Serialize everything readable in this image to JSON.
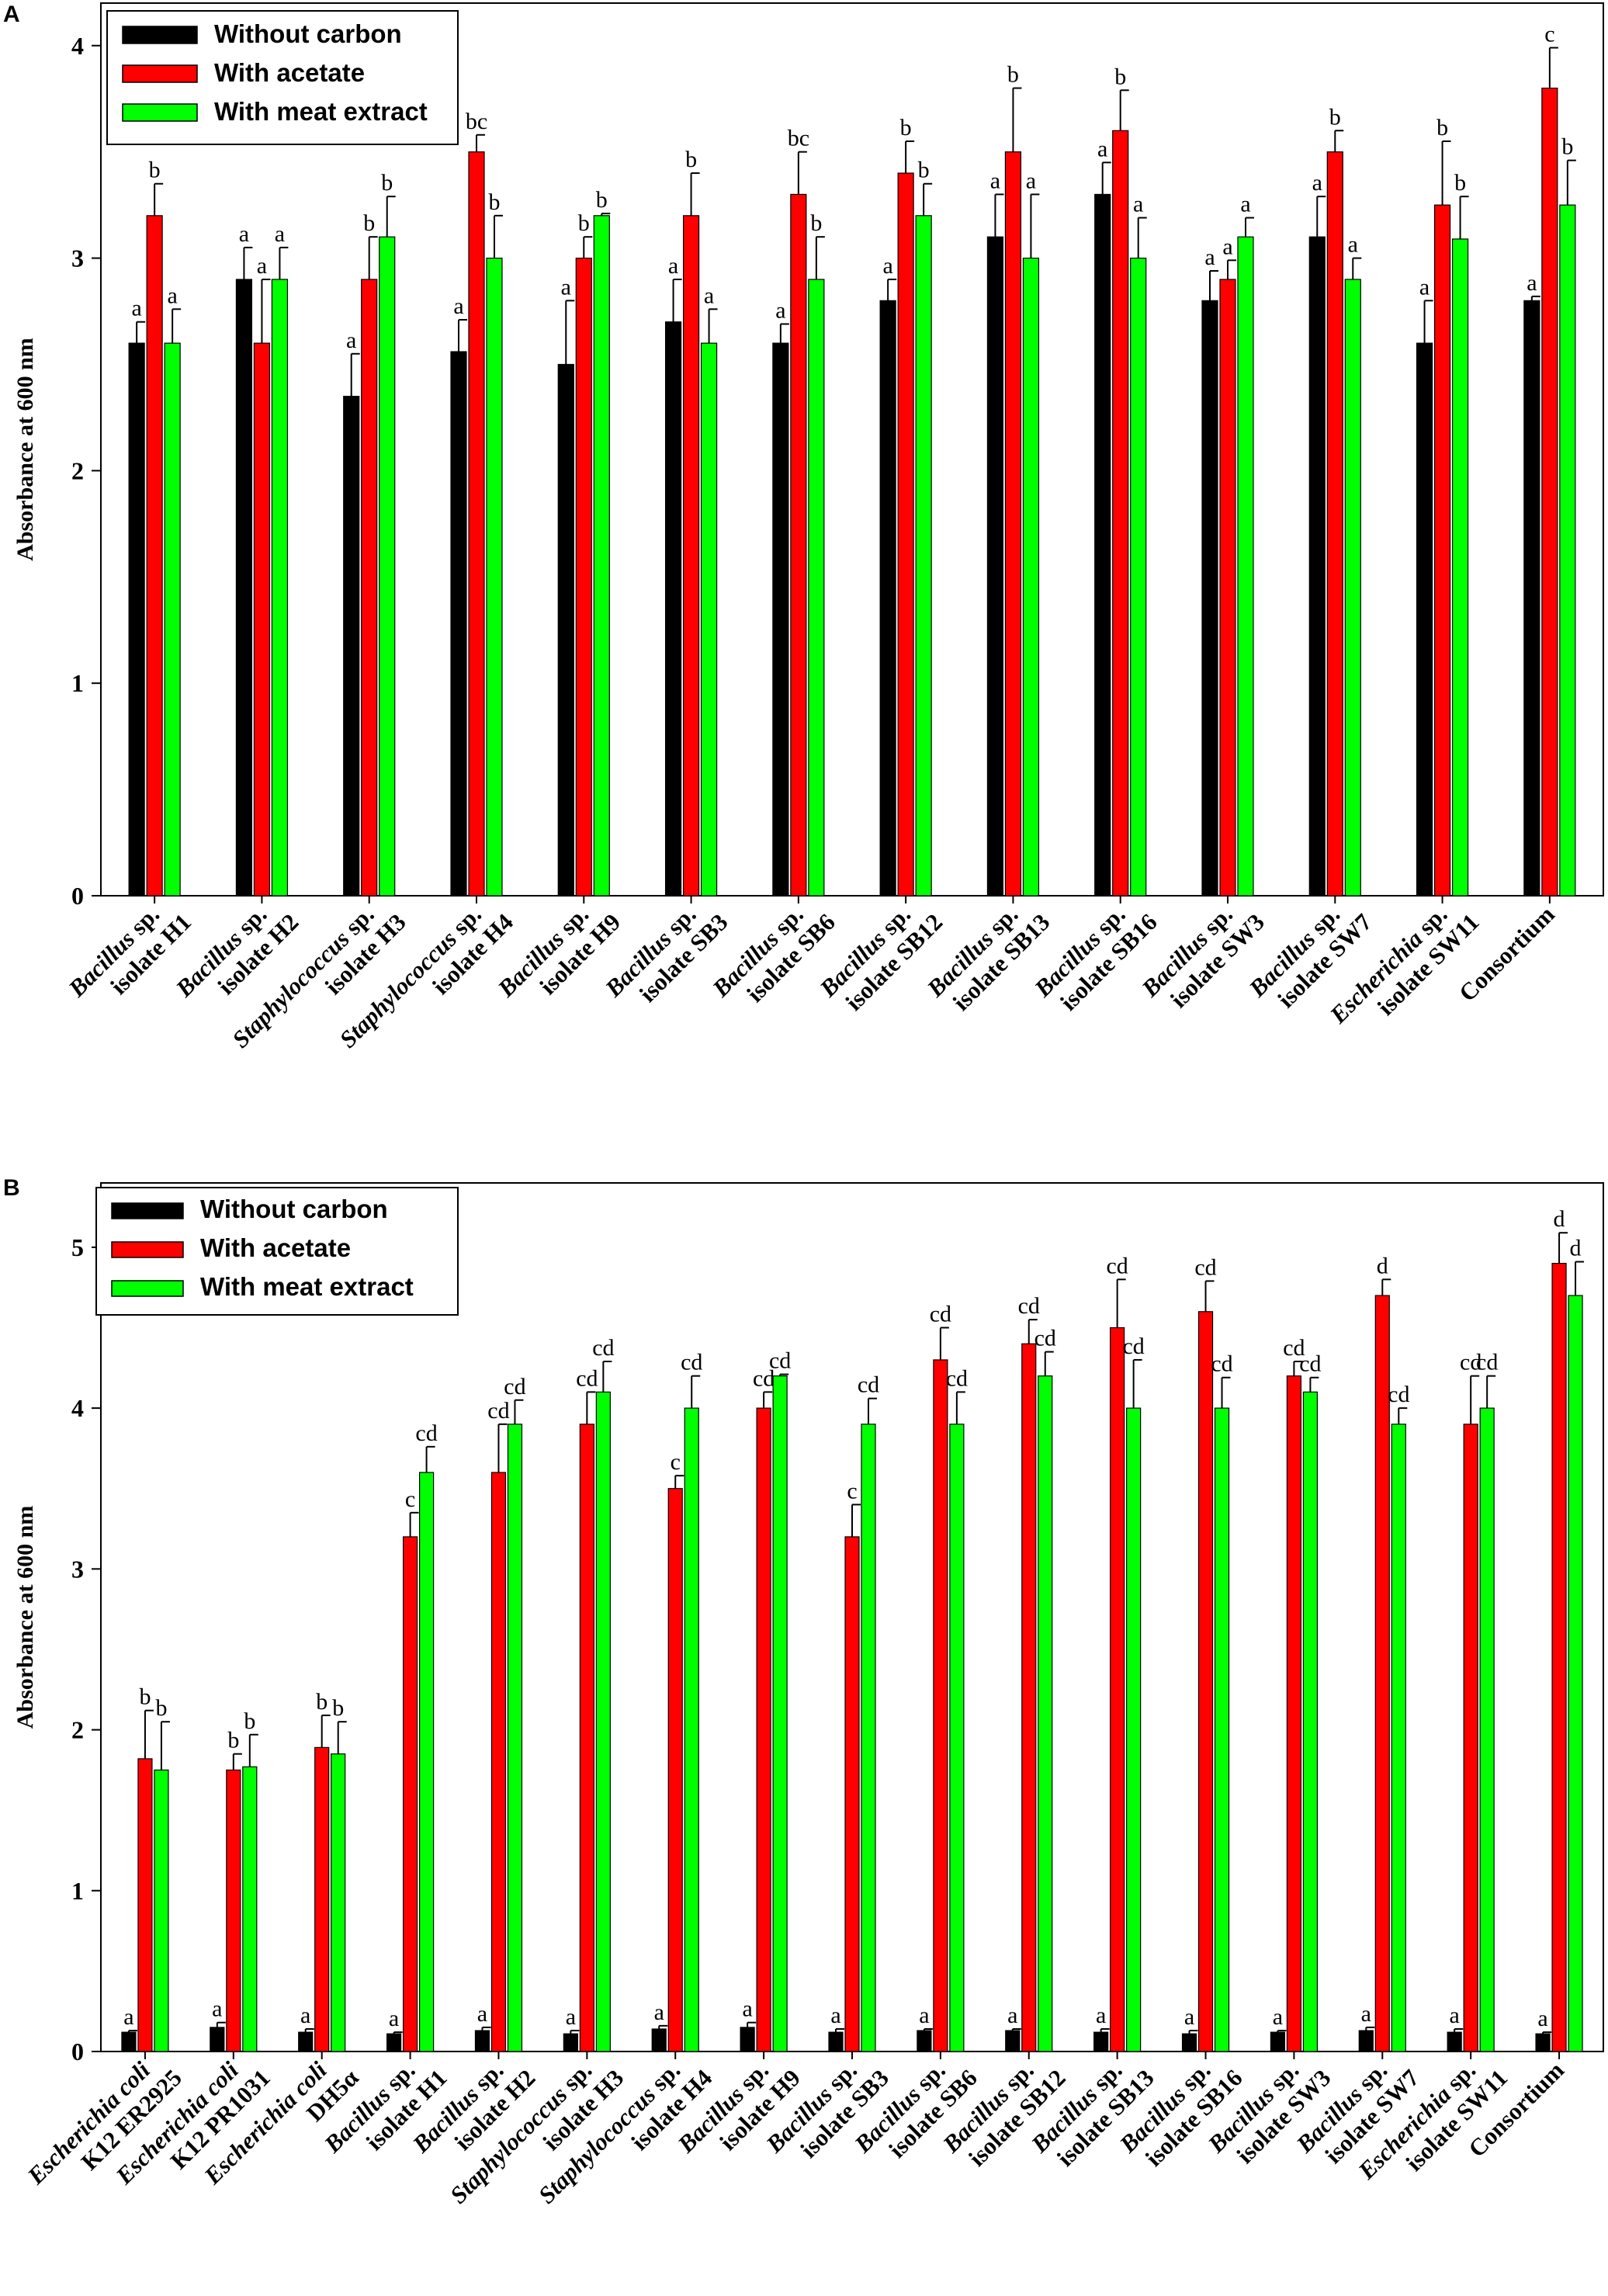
{
  "chart_data": [
    {
      "panel": "A",
      "type": "bar",
      "ylabel": "Absorbance at 600 nm",
      "xlabel": "",
      "ylim": [
        0,
        4.2
      ],
      "yticks": [
        "0",
        "1",
        "2",
        "3",
        "4"
      ],
      "legend": {
        "placement": "top-left",
        "entries": [
          "Without carbon",
          "With acetate",
          "With meat extract"
        ]
      },
      "categories": [
        {
          "genus": "Bacillus",
          "suffix": " sp.",
          "line2": "isolate H1"
        },
        {
          "genus": "Bacillus",
          "suffix": " sp.",
          "line2": "isolate H2"
        },
        {
          "genus": "Staphylococcus",
          "suffix": " sp.",
          "line2": "isolate H3"
        },
        {
          "genus": "Staphylococcus",
          "suffix": " sp.",
          "line2": "isolate H4"
        },
        {
          "genus": "Bacillus",
          "suffix": " sp.",
          "line2": "isolate H9"
        },
        {
          "genus": "Bacillus",
          "suffix": " sp.",
          "line2": "isolate SB3"
        },
        {
          "genus": "Bacillus",
          "suffix": " sp.",
          "line2": "isolate SB6"
        },
        {
          "genus": "Bacillus",
          "suffix": " sp.",
          "line2": "isolate SB12"
        },
        {
          "genus": "Bacillus",
          "suffix": " sp.",
          "line2": "isolate SB13"
        },
        {
          "genus": "Bacillus",
          "suffix": " sp.",
          "line2": "isolate SB16"
        },
        {
          "genus": "Bacillus",
          "suffix": " sp.",
          "line2": "isolate SW3"
        },
        {
          "genus": "Bacillus",
          "suffix": " sp.",
          "line2": "isolate SW7"
        },
        {
          "genus": "Escherichia",
          "suffix": " sp.",
          "line2": "isolate SW11"
        },
        {
          "genus": "",
          "suffix": "Consortium",
          "line2": ""
        }
      ],
      "series": [
        {
          "name": "Without carbon",
          "color": "#000000",
          "values": [
            2.6,
            2.9,
            2.35,
            2.56,
            2.5,
            2.7,
            2.6,
            2.8,
            3.1,
            3.3,
            2.8,
            3.1,
            2.6,
            2.8
          ],
          "errors": [
            0.1,
            0.15,
            0.2,
            0.15,
            0.3,
            0.2,
            0.09,
            0.1,
            0.2,
            0.15,
            0.14,
            0.19,
            0.2,
            0.02
          ],
          "labels": [
            "a",
            "a",
            "a",
            "a",
            "a",
            "a",
            "a",
            "a",
            "a",
            "a",
            "a",
            "a",
            "a",
            "a"
          ]
        },
        {
          "name": "With acetate",
          "color": "#ff0000",
          "values": [
            3.2,
            2.6,
            2.9,
            3.5,
            3.0,
            3.2,
            3.3,
            3.4,
            3.5,
            3.6,
            2.9,
            3.5,
            3.25,
            3.8
          ],
          "errors": [
            0.15,
            0.3,
            0.2,
            0.08,
            0.1,
            0.2,
            0.2,
            0.15,
            0.3,
            0.19,
            0.09,
            0.1,
            0.3,
            0.19
          ],
          "labels": [
            "b",
            "a",
            "b",
            "bc",
            "b",
            "b",
            "bc",
            "b",
            "b",
            "b",
            "a",
            "b",
            "b",
            "c"
          ]
        },
        {
          "name": "With meat extract",
          "color": "#00ff00",
          "values": [
            2.6,
            2.9,
            3.1,
            3.0,
            3.2,
            2.6,
            2.9,
            3.2,
            3.0,
            3.0,
            3.1,
            2.9,
            3.09,
            3.25
          ],
          "errors": [
            0.16,
            0.15,
            0.19,
            0.2,
            0.01,
            0.16,
            0.2,
            0.15,
            0.3,
            0.19,
            0.09,
            0.1,
            0.2,
            0.21
          ],
          "labels": [
            "a",
            "a",
            "b",
            "b",
            "b",
            "a",
            "b",
            "b",
            "a",
            "a",
            "a",
            "a",
            "b",
            "b"
          ]
        }
      ]
    },
    {
      "panel": "B",
      "type": "bar",
      "ylabel": "Absorbance at 600 nm",
      "xlabel": "",
      "ylim": [
        0,
        5.4
      ],
      "yticks": [
        "0",
        "1",
        "2",
        "3",
        "4",
        "5"
      ],
      "legend": {
        "placement": "top-left",
        "entries": [
          "Without carbon",
          "With acetate",
          "With meat extract"
        ]
      },
      "categories": [
        {
          "genus": "Escherichia coli",
          "suffix": "",
          "line2": "K12 ER2925"
        },
        {
          "genus": "Escherichia coli",
          "suffix": "",
          "line2": "K12 PR1031"
        },
        {
          "genus": "Escherichia coli",
          "suffix": "",
          "line2": "DH5α"
        },
        {
          "genus": "Bacillus",
          "suffix": " sp.",
          "line2": "isolate H1"
        },
        {
          "genus": "Bacillus",
          "suffix": " sp.",
          "line2": "isolate H2"
        },
        {
          "genus": "Staphylococcus",
          "suffix": " sp.",
          "line2": "isolate H3"
        },
        {
          "genus": "Staphylococcus",
          "suffix": " sp.",
          "line2": "isolate H4"
        },
        {
          "genus": "Bacillus",
          "suffix": " sp.",
          "line2": "isolate H9"
        },
        {
          "genus": "Bacillus",
          "suffix": " sp.",
          "line2": "isolate SB3"
        },
        {
          "genus": "Bacillus",
          "suffix": " sp.",
          "line2": "isolate SB6"
        },
        {
          "genus": "Bacillus",
          "suffix": " sp.",
          "line2": "isolate SB12"
        },
        {
          "genus": "Bacillus",
          "suffix": " sp.",
          "line2": "isolate SB13"
        },
        {
          "genus": "Bacillus",
          "suffix": " sp.",
          "line2": "isolate SB16"
        },
        {
          "genus": "Bacillus",
          "suffix": " sp.",
          "line2": "isolate SW3"
        },
        {
          "genus": "Bacillus",
          "suffix": " sp.",
          "line2": "isolate SW7"
        },
        {
          "genus": "Escherichia",
          "suffix": " sp.",
          "line2": "isolate SW11"
        },
        {
          "genus": "",
          "suffix": "Consortium",
          "line2": ""
        }
      ],
      "series": [
        {
          "name": "Without carbon",
          "color": "#000000",
          "values": [
            0.12,
            0.15,
            0.12,
            0.11,
            0.13,
            0.11,
            0.14,
            0.15,
            0.12,
            0.13,
            0.13,
            0.12,
            0.11,
            0.12,
            0.13,
            0.12,
            0.11
          ],
          "errors": [
            0.01,
            0.03,
            0.02,
            0.01,
            0.02,
            0.02,
            0.02,
            0.03,
            0.02,
            0.01,
            0.01,
            0.02,
            0.02,
            0.01,
            0.02,
            0.02,
            0.01
          ],
          "labels": [
            "a",
            "a",
            "a",
            "a",
            "a",
            "a",
            "a",
            "a",
            "a",
            "a",
            "a",
            "a",
            "a",
            "a",
            "a",
            "a",
            "a"
          ]
        },
        {
          "name": "With acetate",
          "color": "#ff0000",
          "values": [
            1.82,
            1.75,
            1.89,
            3.2,
            3.6,
            3.9,
            3.5,
            4.0,
            3.2,
            4.3,
            4.4,
            4.5,
            4.6,
            4.2,
            4.7,
            3.9,
            4.9
          ],
          "errors": [
            0.3,
            0.1,
            0.2,
            0.15,
            0.3,
            0.2,
            0.08,
            0.1,
            0.2,
            0.2,
            0.15,
            0.3,
            0.19,
            0.09,
            0.1,
            0.3,
            0.19
          ],
          "labels": [
            "b",
            "b",
            "b",
            "c",
            "cd",
            "cd",
            "c",
            "cd",
            "c",
            "cd",
            "cd",
            "cd",
            "cd",
            "cd",
            "d",
            "cd",
            "d"
          ]
        },
        {
          "name": "With meat extract",
          "color": "#00ff00",
          "values": [
            1.75,
            1.77,
            1.85,
            3.6,
            3.9,
            4.1,
            4.0,
            4.2,
            3.9,
            3.9,
            4.2,
            4.0,
            4.0,
            4.1,
            3.9,
            4.0,
            4.7
          ],
          "errors": [
            0.3,
            0.2,
            0.2,
            0.16,
            0.15,
            0.19,
            0.2,
            0.01,
            0.16,
            0.2,
            0.15,
            0.3,
            0.19,
            0.09,
            0.1,
            0.2,
            0.21
          ],
          "labels": [
            "b",
            "b",
            "b",
            "cd",
            "cd",
            "cd",
            "cd",
            "cd",
            "cd",
            "cd",
            "cd",
            "cd",
            "cd",
            "cd",
            "cd",
            "cd",
            "d"
          ]
        }
      ]
    }
  ]
}
